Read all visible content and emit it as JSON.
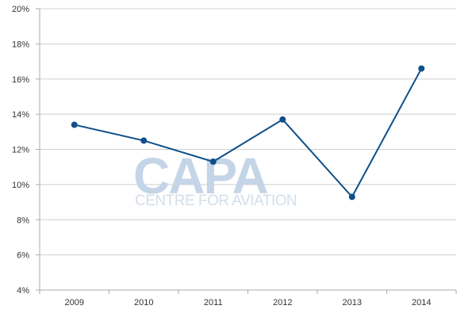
{
  "watermark": {
    "brand": "CAPA",
    "tagline": "CENTRE FOR AVIATION"
  },
  "chart_data": {
    "type": "line",
    "title": "",
    "xlabel": "",
    "ylabel": "",
    "categories": [
      "2009",
      "2010",
      "2011",
      "2012",
      "2013",
      "2014"
    ],
    "series": [
      {
        "values": [
          13.4,
          12.5,
          11.3,
          13.7,
          9.3,
          16.6
        ],
        "color": "#0f4f8a"
      }
    ],
    "ylim": [
      4,
      20
    ],
    "yticks": [
      4,
      6,
      8,
      10,
      12,
      14,
      16,
      18,
      20
    ],
    "ytick_format": "%",
    "grid": "horizontal",
    "legend": "none"
  }
}
